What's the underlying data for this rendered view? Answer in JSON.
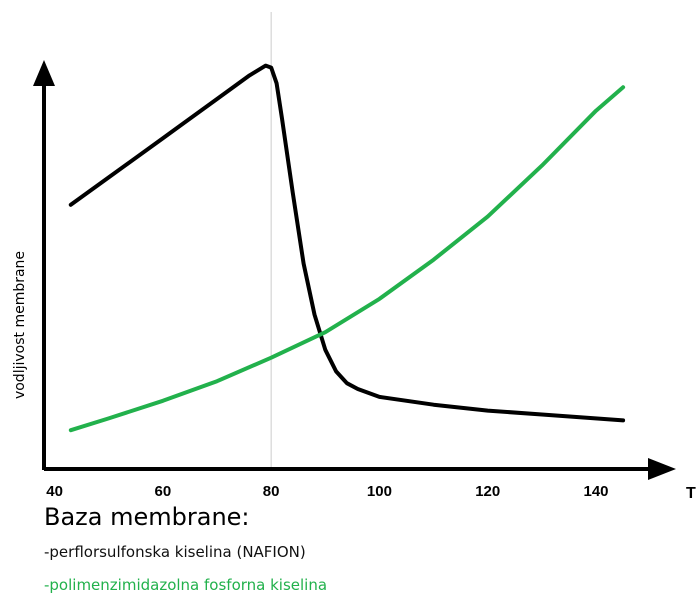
{
  "chart_data": {
    "type": "line",
    "title": "",
    "xlabel": "T",
    "ylabel": "vodljivost membrane",
    "xlim": [
      40,
      145
    ],
    "x_ticks": [
      40,
      60,
      80,
      100,
      120,
      140
    ],
    "grid": false,
    "reference_line_x": 80,
    "legend_title": "Baza membrane:",
    "legend_position": "bottom-left",
    "series": [
      {
        "name": "-perflorsulfonska kiselina  (NAFION)",
        "color": "#000000",
        "x": [
          43,
          50,
          60,
          70,
          76,
          79,
          80,
          81,
          82,
          84,
          86,
          88,
          90,
          92,
          94,
          96,
          100,
          110,
          120,
          130,
          145
        ],
        "y": [
          6.0,
          6.7,
          7.7,
          8.7,
          9.3,
          9.55,
          9.5,
          9.1,
          8.2,
          6.3,
          4.5,
          3.2,
          2.3,
          1.75,
          1.45,
          1.3,
          1.1,
          0.9,
          0.75,
          0.65,
          0.5
        ]
      },
      {
        "name": "-polimenzimidazolna fosforna kiselina",
        "color": "#22b14c",
        "x": [
          43,
          50,
          60,
          70,
          80,
          90,
          100,
          110,
          120,
          130,
          140,
          145
        ],
        "y": [
          0.25,
          0.55,
          1.0,
          1.5,
          2.1,
          2.75,
          3.6,
          4.6,
          5.7,
          7.0,
          8.4,
          9.0
        ]
      }
    ],
    "ylim": [
      0,
      10
    ]
  }
}
